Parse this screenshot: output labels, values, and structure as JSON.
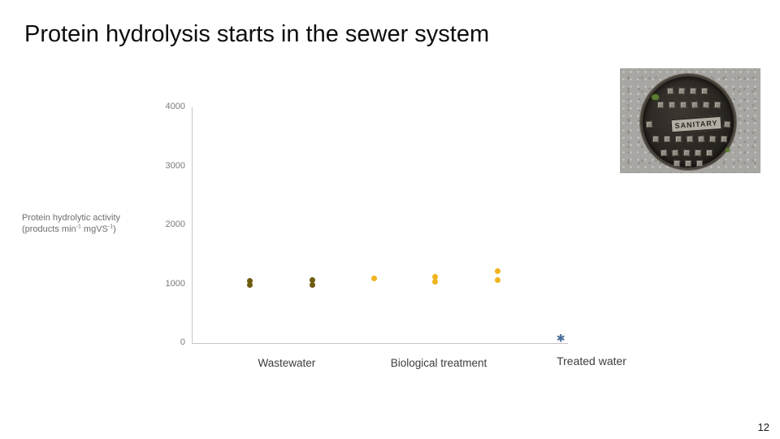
{
  "header": {
    "title": "Protein hydrolysis starts in the sewer system"
  },
  "photo": {
    "plate_label": "SANITARY"
  },
  "footer": {
    "page_number": "12"
  },
  "chart_data": {
    "type": "scatter",
    "title": "",
    "xlabel": "",
    "ylabel_line1": "Protein hydrolytic activity",
    "ylabel_line2": {
      "pre": "(products min",
      "sup1": "-1",
      "mid": " mgVS",
      "sup2": "-1",
      "post": ")"
    },
    "ylim": [
      0,
      4000
    ],
    "yticks": [
      0,
      1000,
      2000,
      3000,
      4000
    ],
    "grid": false,
    "legend": "none",
    "categories": [
      "Wastewater",
      "Biological treatment",
      "Treated water"
    ],
    "series": [
      {
        "name": "Wastewater",
        "color": "#6f5c10",
        "marker": "circle",
        "points": [
          {
            "x": 0.154,
            "y": 1050
          },
          {
            "x": 0.154,
            "y": 985
          },
          {
            "x": 0.322,
            "y": 1075
          },
          {
            "x": 0.322,
            "y": 980
          }
        ]
      },
      {
        "name": "Biological treatment",
        "color": "#f0b41d",
        "marker": "circle",
        "points": [
          {
            "x": 0.485,
            "y": 1100
          },
          {
            "x": 0.649,
            "y": 1130
          },
          {
            "x": 0.649,
            "y": 1035
          },
          {
            "x": 0.816,
            "y": 1215
          },
          {
            "x": 0.816,
            "y": 1065
          }
        ]
      },
      {
        "name": "Treated water",
        "color": "#4a6d9b",
        "marker": "asterisk",
        "points": [
          {
            "x": 0.983,
            "y": 70
          }
        ]
      }
    ]
  }
}
